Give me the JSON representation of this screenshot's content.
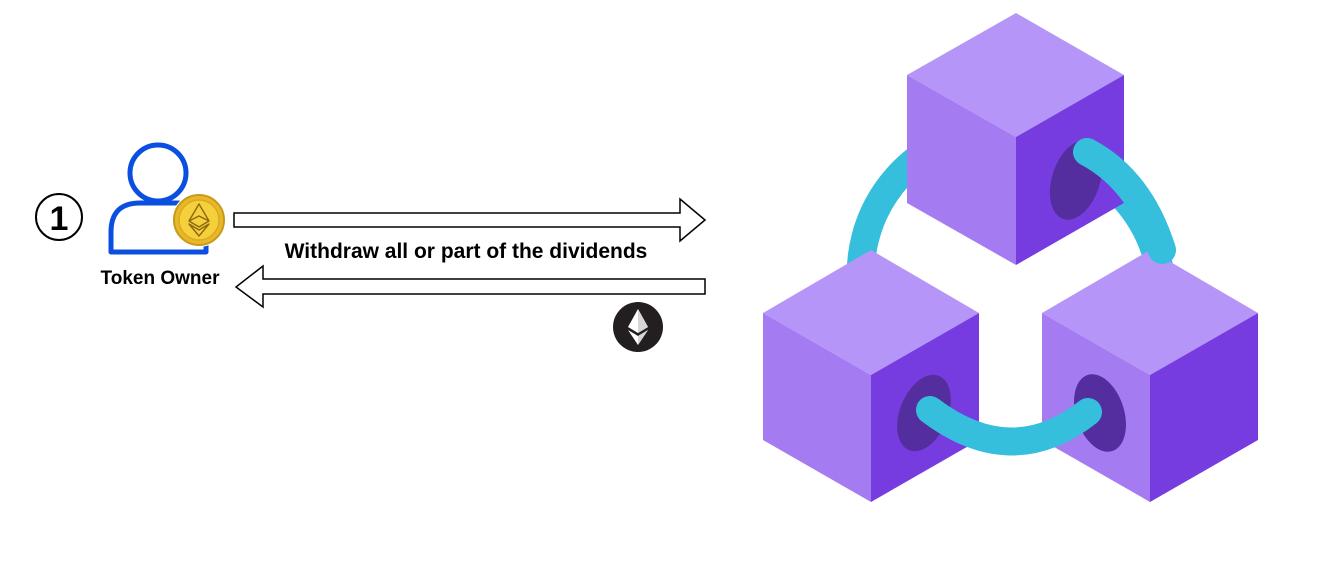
{
  "step": {
    "number": "1"
  },
  "actor": {
    "label": "Token Owner",
    "icon": "user-icon",
    "badge_icon": "ethereum-coin-icon",
    "badge_color": "#f5cf3c"
  },
  "flow": {
    "request_label": "Withdraw all or part of the dividends",
    "response_icon": "ethereum-icon"
  },
  "network": {
    "icon": "blockchain-icon",
    "cube_color_top": "#b596f8",
    "cube_color_left": "#a57bf2",
    "cube_color_right": "#773ce0",
    "link_color": "#35bfdd"
  }
}
